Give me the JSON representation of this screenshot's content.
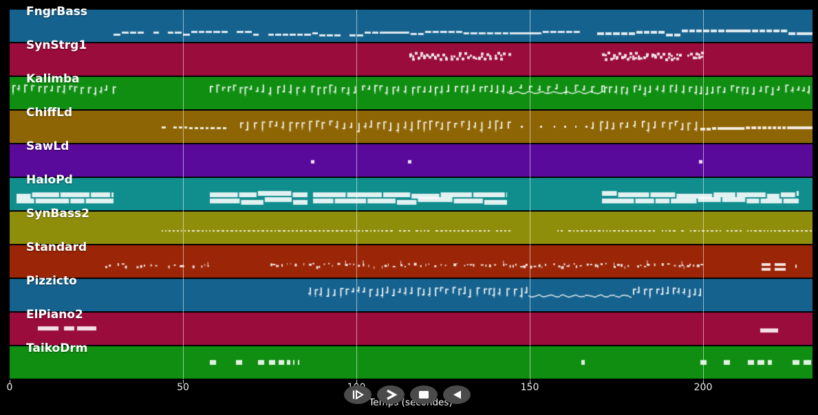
{
  "window": {
    "background": "#000000"
  },
  "chart_data": {
    "type": "midi-piano-roll",
    "xlabel": "Temps (secondes)",
    "x_ticks": [
      0,
      50,
      100,
      150,
      200
    ],
    "x_range": [
      0,
      231.5
    ],
    "grid": true,
    "grid_color": "rgba(255,255,255,0.55)",
    "note_color": "#ffffff",
    "tracks": [
      {
        "name": "FngrBass",
        "color": "#16628E",
        "segments": [
          {
            "type": "dashline",
            "t0": 30,
            "t1": 165.5,
            "y": 34,
            "h": 3,
            "dash": 8,
            "gap": 2,
            "jitter": 7,
            "long": 0.06
          },
          {
            "type": "dashline",
            "t0": 169.5,
            "t1": 231.4,
            "y": 33,
            "h": 4,
            "dash": 8,
            "gap": 2,
            "jitter": 9,
            "long": 0.04
          }
        ]
      },
      {
        "name": "SynStrg1",
        "color": "#990C3C",
        "segments": [
          {
            "type": "cluster",
            "t0": 115.3,
            "t1": 144,
            "y": 12,
            "h": 14
          },
          {
            "type": "cluster",
            "t0": 170.8,
            "t1": 199.6,
            "y": 12,
            "h": 14
          }
        ]
      },
      {
        "name": "Kalimba",
        "color": "#108E12",
        "segments": [
          {
            "type": "glyphs",
            "t0": 0.8,
            "t1": 30,
            "y": 11,
            "h": 13,
            "spacing": 9
          },
          {
            "type": "glyphs",
            "t0": 57.7,
            "t1": 143.5,
            "y": 11,
            "h": 13,
            "spacing": 9
          },
          {
            "type": "squiggle",
            "t0": 143.5,
            "t1": 171.5,
            "y": 22
          },
          {
            "type": "glyphs",
            "t0": 144.5,
            "t1": 171.5,
            "y": 10,
            "h": 11,
            "spacing": 13
          },
          {
            "type": "glyphs",
            "t0": 171.5,
            "t1": 231.4,
            "y": 11,
            "h": 13,
            "spacing": 9
          }
        ]
      },
      {
        "name": "ChiffLd",
        "color": "#8E6504",
        "segments": [
          {
            "type": "dashline",
            "t0": 43.8,
            "t1": 66,
            "y": 23,
            "h": 3,
            "dash": 4,
            "gap": 3,
            "jitter": 2,
            "long": 0.05
          },
          {
            "type": "glyphs",
            "t0": 66.5,
            "t1": 144,
            "y": 14,
            "h": 15,
            "spacing": 10
          },
          {
            "type": "marks",
            "y": 22,
            "h": 3,
            "items": [
              [
                147.5,
                3
              ],
              [
                153,
                3
              ],
              [
                157,
                2
              ],
              [
                160,
                3
              ],
              [
                163,
                2
              ],
              [
                166,
                3
              ]
            ]
          },
          {
            "type": "glyphs",
            "t0": 168,
            "t1": 199,
            "y": 14,
            "h": 15,
            "spacing": 10
          },
          {
            "type": "dashline",
            "t0": 199.3,
            "t1": 231.4,
            "y": 23,
            "h": 4,
            "dash": 5,
            "gap": 2,
            "jitter": 4,
            "long": 0.05
          }
        ]
      },
      {
        "name": "SawLd",
        "color": "#5A0A9B",
        "segments": [
          {
            "type": "marks",
            "y": 23,
            "h": 5,
            "items": [
              [
                86.9,
                5
              ],
              [
                114.9,
                5
              ],
              [
                198.8,
                5
              ]
            ]
          }
        ]
      },
      {
        "name": "HaloPd",
        "color": "#108D8D",
        "segments": [
          {
            "type": "chords",
            "t0": 2,
            "t1": 30,
            "y": 21
          },
          {
            "type": "chords",
            "t0": 57.7,
            "t1": 85.9,
            "y": 21
          },
          {
            "type": "chords",
            "t0": 87.5,
            "t1": 143.5,
            "y": 21
          },
          {
            "type": "chords",
            "t0": 170.8,
            "t1": 227.5,
            "y": 21
          }
        ]
      },
      {
        "name": "SynBass2",
        "color": "#8F8E0B",
        "segments": [
          {
            "type": "dashline",
            "t0": 43.8,
            "t1": 145,
            "y": 27,
            "h": 2,
            "dash": 2,
            "gap": 3,
            "jitter": 1,
            "long": 0
          },
          {
            "type": "dashline",
            "t0": 158,
            "t1": 231.4,
            "y": 27,
            "h": 2,
            "dash": 2,
            "gap": 3,
            "jitter": 1,
            "long": 0
          }
        ]
      },
      {
        "name": "Standard",
        "color": "#9A2507",
        "segments": [
          {
            "type": "marks",
            "y": 28,
            "h": 4,
            "items": [
              [
                -2.5,
                5
              ]
            ]
          },
          {
            "type": "drumline",
            "t0": 27.5,
            "t1": 58.5,
            "y": 28,
            "density": 0.55
          },
          {
            "type": "drumline",
            "t0": 74.5,
            "t1": 199.6,
            "y": 28,
            "density": 0.85
          },
          {
            "type": "marks",
            "y": 26,
            "h": 4,
            "items": [
              [
                216.9,
                13
              ],
              [
                220.7,
                16
              ]
            ]
          },
          {
            "type": "marks",
            "y": 33,
            "h": 4,
            "items": [
              [
                216.9,
                13
              ],
              [
                220.7,
                16
              ]
            ]
          },
          {
            "type": "marks",
            "y": 28,
            "h": 5,
            "items": [
              [
                226.5,
                2
              ]
            ]
          }
        ]
      },
      {
        "name": "Pizzicto",
        "color": "#16628E",
        "segments": [
          {
            "type": "glyphs",
            "t0": 86.5,
            "t1": 149.6,
            "y": 11,
            "h": 14,
            "spacing": 9
          },
          {
            "type": "squiggle",
            "t0": 149.6,
            "t1": 179.4,
            "y": 24
          },
          {
            "type": "glyphs",
            "t0": 179.8,
            "t1": 199.6,
            "y": 11,
            "h": 14,
            "spacing": 9
          }
        ]
      },
      {
        "name": "ElPiano2",
        "color": "#990C3C",
        "segments": [
          {
            "type": "marks",
            "y": 20,
            "h": 6,
            "items": [
              [
                8.1,
                30
              ],
              [
                15.7,
                15
              ],
              [
                19.5,
                28
              ]
            ]
          },
          {
            "type": "marks",
            "y": 23,
            "h": 6,
            "items": [
              [
                216.5,
                26
              ]
            ]
          }
        ]
      },
      {
        "name": "TaikoDrm",
        "color": "#108E12",
        "segments": [
          {
            "type": "marks",
            "y": 20,
            "h": 7,
            "items": [
              [
                57.7,
                9
              ],
              [
                65.3,
                9
              ],
              [
                71.6,
                9
              ],
              [
                74.8,
                9
              ],
              [
                77.6,
                8
              ],
              [
                80,
                5
              ],
              [
                81.8,
                2
              ],
              [
                83.2,
                2
              ],
              [
                164.9,
                5
              ],
              [
                199.2,
                9
              ],
              [
                206,
                9
              ],
              [
                212.9,
                9
              ],
              [
                215.7,
                10
              ],
              [
                218.6,
                6
              ],
              [
                225.8,
                10
              ],
              [
                228.9,
                11
              ]
            ]
          }
        ]
      }
    ]
  },
  "controls": {
    "background": "#4b4b4b",
    "buttons": [
      {
        "id": "play",
        "icon": "play-icon"
      },
      {
        "id": "forward",
        "icon": "fast-forward-icon"
      },
      {
        "id": "stop",
        "icon": "stop-icon"
      },
      {
        "id": "rewind",
        "icon": "rewind-icon"
      }
    ]
  }
}
